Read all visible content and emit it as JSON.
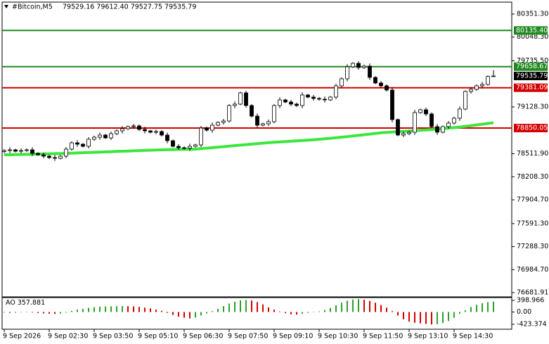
{
  "chart_data": {
    "type": "candlestick",
    "symbol": "#Bitcoin,M5",
    "quote": "79529.16 79612.40 79527.75 79535.79",
    "categories": [
      "9 Sep 2026",
      null,
      null,
      null,
      null,
      null,
      null,
      null,
      "9 Sep 02:30",
      null,
      null,
      null,
      null,
      null,
      null,
      null,
      "9 Sep 03:50",
      null,
      null,
      null,
      null,
      null,
      null,
      null,
      "9 Sep 05:10",
      null,
      null,
      null,
      null,
      null,
      null,
      null,
      "9 Sep 06:30",
      null,
      null,
      null,
      null,
      null,
      null,
      null,
      "9 Sep 07:50",
      null,
      null,
      null,
      null,
      null,
      null,
      null,
      "9 Sep 09:10",
      null,
      null,
      null,
      null,
      null,
      null,
      null,
      "9 Sep 10:30",
      null,
      null,
      null,
      null,
      null,
      null,
      null,
      "9 Sep 11:50",
      null,
      null,
      null,
      null,
      null,
      null,
      null,
      "9 Sep 13:10",
      null,
      null,
      null,
      null,
      null,
      null,
      null,
      "9 Sep 14:30",
      null,
      null,
      null,
      null,
      null,
      null,
      null
    ],
    "ohlc": [
      [
        78540.0,
        78573.7,
        78520.0,
        78553.7
      ],
      [
        78553.7,
        78598.0,
        78518.7,
        78563.0
      ],
      [
        78563.0,
        78578.0,
        78529.4,
        78544.4
      ],
      [
        78544.4,
        78581.7,
        78516.4,
        78553.7
      ],
      [
        78553.7,
        78583.0,
        78533.7,
        78563.0
      ],
      [
        78563.0,
        78598.0,
        78481.6,
        78516.6
      ],
      [
        78516.6,
        78531.6,
        78483.1,
        78498.1
      ],
      [
        78498.1,
        78526.1,
        78451.6,
        78479.6
      ],
      [
        78479.6,
        78499.6,
        78441.0,
        78461.0
      ],
      [
        78461.0,
        78496.0,
        78416.8,
        78451.8
      ],
      [
        78451.8,
        78494.6,
        78436.8,
        78479.6
      ],
      [
        78479.6,
        78600.2,
        78451.6,
        78572.2
      ],
      [
        78572.2,
        78675.6,
        78552.2,
        78655.6
      ],
      [
        78655.6,
        78690.6,
        78602.1,
        78637.1
      ],
      [
        78637.1,
        78652.1,
        78594.3,
        78609.3
      ],
      [
        78609.3,
        78730.0,
        78581.3,
        78702.0
      ],
      [
        78702.0,
        78749.7,
        78682.0,
        78729.7
      ],
      [
        78729.7,
        78792.5,
        78694.7,
        78757.5
      ],
      [
        78757.5,
        78772.5,
        78705.5,
        78720.5
      ],
      [
        78720.5,
        78804.1,
        78692.5,
        78776.1
      ],
      [
        78776.1,
        78833.1,
        78756.1,
        78813.1
      ],
      [
        78813.1,
        78875.9,
        78778.1,
        78840.9
      ],
      [
        78840.9,
        78883.7,
        78825.9,
        78868.7
      ],
      [
        78868.7,
        78906.0,
        78840.7,
        78878.0
      ],
      [
        78878.0,
        78898.0,
        78811.7,
        78831.7
      ],
      [
        78831.7,
        78866.7,
        78778.1,
        78813.1
      ],
      [
        78813.1,
        78828.1,
        78779.6,
        78794.6
      ],
      [
        78794.6,
        78831.9,
        78766.6,
        78803.9
      ],
      [
        78803.9,
        78823.9,
        78737.5,
        78757.5
      ],
      [
        78757.5,
        78792.5,
        78648.4,
        78683.4
      ],
      [
        78683.4,
        78698.4,
        78594.3,
        78609.3
      ],
      [
        78609.3,
        78637.3,
        78562.8,
        78590.8
      ],
      [
        78590.8,
        78610.8,
        78565.2,
        78585.2
      ],
      [
        78585.2,
        78644.3,
        78550.2,
        78609.3
      ],
      [
        78609.3,
        78642.8,
        78594.3,
        78627.8
      ],
      [
        78627.8,
        78878.2,
        78599.8,
        78850.2
      ],
      [
        78850.2,
        78870.2,
        78802.4,
        78822.4
      ],
      [
        78822.4,
        78922.3,
        78787.4,
        78887.3
      ],
      [
        78887.3,
        78939.3,
        78872.3,
        78924.3
      ],
      [
        78924.3,
        78970.9,
        78896.3,
        78942.9
      ],
      [
        78942.9,
        79166.7,
        78922.9,
        79146.7
      ],
      [
        79146.7,
        79200.3,
        79111.7,
        79165.3
      ],
      [
        79165.3,
        79328.5,
        79150.3,
        79313.5
      ],
      [
        79313.5,
        79341.5,
        79118.7,
        79146.7
      ],
      [
        79146.7,
        79166.7,
        78987.7,
        79007.7
      ],
      [
        79007.7,
        79042.7,
        78852.3,
        78887.3
      ],
      [
        78887.3,
        78920.8,
        78872.3,
        78905.8
      ],
      [
        78905.8,
        78961.6,
        78877.8,
        78933.6
      ],
      [
        78933.6,
        79166.7,
        78913.6,
        79146.7
      ],
      [
        79146.7,
        79255.8,
        79111.7,
        79220.8
      ],
      [
        79220.8,
        79235.8,
        79178.0,
        79193.0
      ],
      [
        79193.0,
        79221.0,
        79137.3,
        79165.3
      ],
      [
        79165.3,
        79185.3,
        79126.7,
        79146.7
      ],
      [
        79146.7,
        79320.7,
        79111.7,
        79285.7
      ],
      [
        79285.7,
        79300.7,
        79242.9,
        79257.9
      ],
      [
        79257.9,
        79285.9,
        79211.4,
        79239.4
      ],
      [
        79239.4,
        79259.4,
        79210.1,
        79230.1
      ],
      [
        79230.1,
        79265.1,
        79185.8,
        79220.8
      ],
      [
        79220.8,
        79272.9,
        79205.8,
        79257.9
      ],
      [
        79257.9,
        79434.2,
        79229.9,
        79406.2
      ],
      [
        79406.2,
        79518.8,
        79386.2,
        79498.8
      ],
      [
        79498.8,
        79691.3,
        79463.8,
        79656.3
      ],
      [
        79656.3,
        79717.7,
        79641.3,
        79702.7
      ],
      [
        79702.7,
        79730.7,
        79619.1,
        79647.1
      ],
      [
        79647.1,
        79685.6,
        79627.1,
        79665.6
      ],
      [
        79665.6,
        79700.6,
        79482.4,
        79517.4
      ],
      [
        79517.4,
        79532.4,
        79428.2,
        79443.2
      ],
      [
        79443.2,
        79471.2,
        79378.2,
        79406.2
      ],
      [
        79406.2,
        79426.2,
        79330.6,
        79350.6
      ],
      [
        79350.6,
        79385.6,
        78926.4,
        78961.4
      ],
      [
        78961.4,
        78976.4,
        78742.5,
        78757.5
      ],
      [
        78757.5,
        78804.1,
        78729.5,
        78776.1
      ],
      [
        78776.1,
        78814.6,
        78756.1,
        78794.6
      ],
      [
        78794.6,
        79089.1,
        78759.6,
        79054.1
      ],
      [
        79054.1,
        79106.1,
        79039.1,
        79091.1
      ],
      [
        79091.1,
        79119.1,
        79007.5,
        79035.5
      ],
      [
        79035.5,
        79055.5,
        78848.7,
        78868.7
      ],
      [
        78868.7,
        78903.7,
        78759.6,
        78794.6
      ],
      [
        78794.6,
        78883.7,
        78779.6,
        78868.7
      ],
      [
        78868.7,
        78943.1,
        78840.7,
        78915.1
      ],
      [
        78915.1,
        78999.9,
        78895.1,
        78979.9
      ],
      [
        78979.9,
        79135.4,
        78944.9,
        79100.4
      ],
      [
        79100.4,
        79347.0,
        79085.4,
        79332.0
      ],
      [
        79332.0,
        79387.8,
        79304.0,
        79359.8
      ],
      [
        79359.8,
        79426.2,
        79339.8,
        79406.2
      ],
      [
        79406.2,
        79459.7,
        79371.2,
        79424.7
      ],
      [
        79424.7,
        79544.2,
        79409.7,
        79529.16
      ],
      [
        79529.16,
        79612.4,
        79527.75,
        79535.79
      ]
    ],
    "up_color": "#ffffff",
    "down_color": "#000000",
    "ylim": [
      76626.3,
      80508.8
    ],
    "yticks": [
      {
        "value": 80351.3,
        "label": "80351.30"
      },
      {
        "value": 80048.3,
        "label": "80048.30"
      },
      {
        "value": 79735.5,
        "label": "79735.50"
      },
      {
        "value": 79128.3,
        "label": "79128.30"
      },
      {
        "value": 78511.9,
        "label": "78511.90"
      },
      {
        "value": 78208.3,
        "label": "78208.30"
      },
      {
        "value": 77904.7,
        "label": "77904.70"
      },
      {
        "value": 77591.3,
        "label": "77591.30"
      },
      {
        "value": 77288.3,
        "label": "77288.30"
      },
      {
        "value": 76984.7,
        "label": "76984.70"
      },
      76681.91
    ],
    "grid": false,
    "levels": [
      {
        "value": 80135.4,
        "label": "80135.40",
        "color": "#1e8a1e"
      },
      {
        "value": 79658.67,
        "color": "#1e8a1e"
      },
      {
        "value": 79381.09,
        "color": "#d40000"
      },
      {
        "value": 78850.05,
        "color": "#d40000"
      }
    ],
    "moving_average": {
      "color": "#3ce63c",
      "values": [
        78498.1,
        78498.1,
        78500.0,
        78501.8,
        78503.7,
        78505.5,
        78507.4,
        78509.2,
        78511.1,
        78512.9,
        78514.8,
        78516.6,
        78519.4,
        78522.2,
        78525.0,
        78527.8,
        78530.5,
        78533.3,
        78536.1,
        78538.9,
        78541.7,
        78544.4,
        78547.2,
        78550.0,
        78552.8,
        78555.5,
        78558.3,
        78561.1,
        78563.0,
        78564.8,
        78566.7,
        78568.5,
        78569.5,
        78570.4,
        78572.2,
        78578.7,
        78585.2,
        78591.7,
        78598.2,
        78604.6,
        78612.1,
        78618.6,
        78625.0,
        78631.5,
        78638.0,
        78644.5,
        78651.0,
        78657.5,
        78663.0,
        78667.7,
        78672.3,
        78676.9,
        78681.6,
        78686.2,
        78690.8,
        78696.4,
        78702.0,
        78708.4,
        78714.9,
        78722.3,
        78729.7,
        78737.2,
        78745.5,
        78753.8,
        78762.2,
        78770.5,
        78778.9,
        78787.2,
        78792.8,
        78797.4,
        78802.0,
        78806.7,
        78811.3,
        78815.9,
        78820.6,
        78825.2,
        78830.8,
        78836.3,
        78842.8,
        78849.3,
        78855.8,
        78863.2,
        78872.4,
        78881.7,
        78891.0,
        78900.3,
        78910.4,
        78919.7
      ]
    },
    "ao": {
      "name": "AO",
      "up_color": "#2ca02c",
      "down_color": "#d40000",
      "ylim": [
        -592.7,
        495.7
      ],
      "yticks": [
        398.966,
        {
          "value": 0,
          "label": "0.00"
        },
        -423.374
      ],
      "values": [
        -20,
        -30,
        -25,
        -15,
        -10,
        -20,
        -35,
        -50,
        -60,
        -65,
        -55,
        -20,
        40,
        80,
        110,
        140,
        165,
        180,
        190,
        195,
        200,
        205,
        200,
        190,
        175,
        150,
        120,
        80,
        40,
        -30,
        -100,
        -160,
        -200,
        -220,
        -190,
        -120,
        -50,
        30,
        110,
        200,
        290,
        350,
        400,
        410,
        395,
        340,
        260,
        160,
        80,
        20,
        -40,
        -80,
        -90,
        -60,
        -30,
        -10,
        20,
        70,
        140,
        230,
        320,
        390,
        430,
        440,
        420,
        380,
        320,
        240,
        150,
        30,
        -120,
        -250,
        -330,
        -370,
        -390,
        -410,
        -430,
        -420,
        -380,
        -310,
        -200,
        -60,
        60,
        170,
        250,
        300,
        340,
        357.881
      ]
    }
  }
}
